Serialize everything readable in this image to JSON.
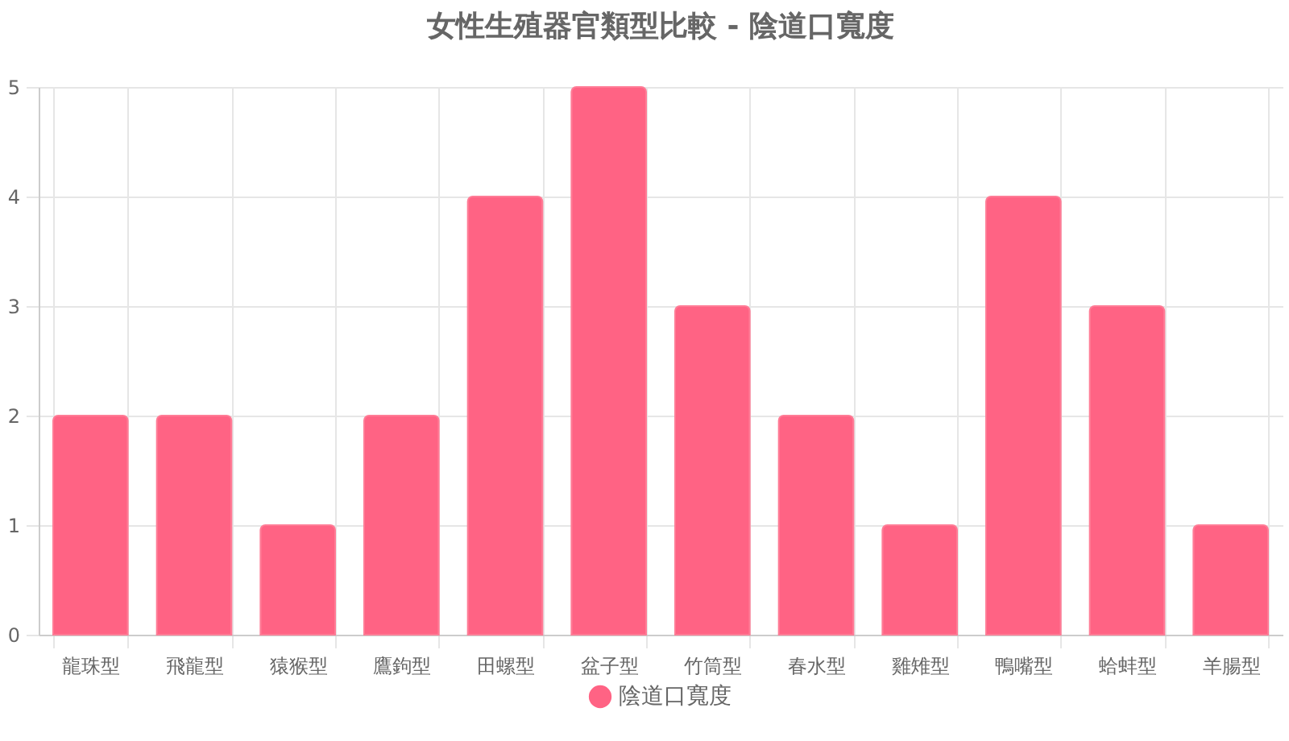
{
  "chart_data": {
    "type": "bar",
    "title": "女性生殖器官類型比較 - 陰道口寬度",
    "categories": [
      "龍珠型",
      "飛龍型",
      "猿猴型",
      "鷹鉤型",
      "田螺型",
      "盆子型",
      "竹筒型",
      "春水型",
      "雞雉型",
      "鴨嘴型",
      "蛤蚌型",
      "羊腸型"
    ],
    "series": [
      {
        "name": "陰道口寬度",
        "color": "#ff6384",
        "values": [
          2,
          2,
          1,
          2,
          4,
          5,
          3,
          2,
          1,
          4,
          3,
          1
        ]
      }
    ],
    "ylim": [
      0,
      5
    ],
    "yticks": [
      0,
      1,
      2,
      3,
      4,
      5
    ],
    "grid": true,
    "legend": "bottom"
  }
}
